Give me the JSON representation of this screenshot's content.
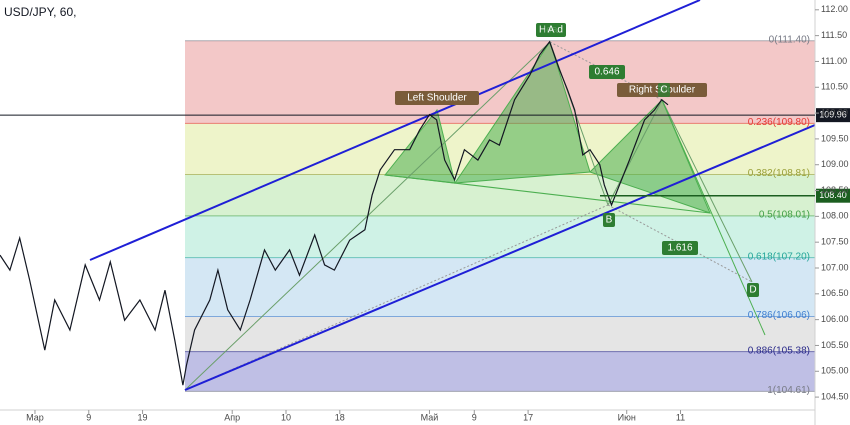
{
  "chart_data": {
    "type": "line",
    "title": "USD/JPY, 60,",
    "x": [
      -3.9,
      -2.8,
      -1.7,
      -0.6,
      1.1,
      2.2,
      3.9,
      5.6,
      7.2,
      8.4,
      10.0,
      11.7,
      13.4,
      14.5,
      15.6,
      16.5,
      16.9,
      17.8,
      19.5,
      20.4,
      21.5,
      22.9,
      24.0,
      25.6,
      26.8,
      28.4,
      29.5,
      31.2,
      32.3,
      33.4,
      35.1,
      36.8,
      37.6,
      38.5,
      40.1,
      41.8,
      42.9,
      44.0,
      44.8,
      45.7,
      46.8,
      47.9,
      49.4,
      50.7,
      51.8,
      53.5,
      55.2,
      56.3,
      57.4,
      58.5,
      59.4,
      60.2,
      61.1,
      61.9,
      63.0,
      63.5,
      64.3,
      65.2,
      66.3,
      68.0,
      69.1,
      69.9,
      70.6
    ],
    "series": [
      {
        "color": "#131722",
        "values": [
          107.25,
          106.96,
          107.58,
          106.77,
          105.41,
          106.38,
          105.8,
          107.06,
          106.38,
          107.12,
          105.99,
          106.38,
          105.8,
          106.57,
          105.6,
          104.73,
          105.12,
          105.8,
          106.38,
          106.96,
          106.19,
          105.8,
          106.38,
          107.35,
          106.96,
          107.35,
          106.86,
          107.64,
          107.06,
          106.96,
          107.54,
          107.74,
          108.41,
          108.9,
          109.29,
          109.29,
          109.67,
          109.97,
          109.87,
          109.09,
          108.71,
          109.29,
          109.09,
          109.48,
          109.38,
          110.26,
          110.74,
          111.13,
          111.38,
          110.84,
          110.45,
          110.06,
          109.19,
          109.29,
          109.0,
          108.61,
          108.22,
          108.61,
          109.09,
          109.87,
          110.06,
          110.26,
          110.16
        ]
      }
    ],
    "xlim": [
      -3.9,
      87
    ],
    "xticks": [
      {
        "value": 0,
        "label": "Мар"
      },
      {
        "value": 6,
        "label": "9"
      },
      {
        "value": 12,
        "label": "19"
      },
      {
        "value": 22,
        "label": "Апр"
      },
      {
        "value": 28,
        "label": "10"
      },
      {
        "value": 34,
        "label": "18"
      },
      {
        "value": 44,
        "label": "Май"
      },
      {
        "value": 49,
        "label": "9"
      },
      {
        "value": 55,
        "label": "17"
      },
      {
        "value": 66,
        "label": "Июн"
      },
      {
        "value": 72,
        "label": "11"
      }
    ],
    "ylim": [
      104.25,
      112.19
    ],
    "yticks": [
      {
        "value": 104.5,
        "label": "104.50"
      },
      {
        "value": 105,
        "label": "105.00"
      },
      {
        "value": 105.5,
        "label": "105.50"
      },
      {
        "value": 106,
        "label": "106.00"
      },
      {
        "value": 106.5,
        "label": "106.50"
      },
      {
        "value": 107,
        "label": "107.00"
      },
      {
        "value": 107.5,
        "label": "107.50"
      },
      {
        "value": 108,
        "label": "108.00"
      },
      {
        "value": 108.5,
        "label": "108.50"
      },
      {
        "value": 109,
        "label": "109.00"
      },
      {
        "value": 109.5,
        "label": "109.50"
      },
      {
        "value": 110,
        "label": "110.00"
      },
      {
        "value": 110.5,
        "label": "110.50"
      },
      {
        "value": 111,
        "label": "111.00"
      },
      {
        "value": 111.5,
        "label": "111.50"
      },
      {
        "value": 112,
        "label": "112.00"
      }
    ],
    "fib_levels": [
      {
        "price": 111.4,
        "label": "0(111.40)",
        "color": "#787b86",
        "band": "#efb6b6"
      },
      {
        "price": 109.8,
        "label": "0.236(109.80)",
        "color": "#e53935",
        "band": "#e8f0b8"
      },
      {
        "price": 108.81,
        "label": "0.382(108.81)",
        "color": "#9aa03a",
        "band": "#c9ecc0"
      },
      {
        "price": 108.01,
        "label": "0.5(108.01)",
        "color": "#43a047",
        "band": "#bfeede"
      },
      {
        "price": 107.2,
        "label": "0.618(107.20)",
        "color": "#26a69a",
        "band": "#c6dff0"
      },
      {
        "price": 106.06,
        "label": "0.786(106.06)",
        "color": "#3f7ecf",
        "band": "#dcdcdc"
      },
      {
        "price": 105.38,
        "label": "0.886(105.38)",
        "color": "#2a2a8a",
        "band": "#a9a9dc"
      },
      {
        "price": 104.61,
        "label": "1(104.61)",
        "color": "#787b86"
      }
    ],
    "price_labels": [
      {
        "value": 109.96,
        "label": "109.96",
        "color": "#131722"
      },
      {
        "value": 108.4,
        "label": "108.40",
        "color": "#1b5e20"
      }
    ],
    "annotations": [
      "Left Shoulder",
      "Head",
      "Right Shoulder",
      "A",
      "B",
      "C",
      "D",
      "0.646",
      "1.616"
    ]
  }
}
